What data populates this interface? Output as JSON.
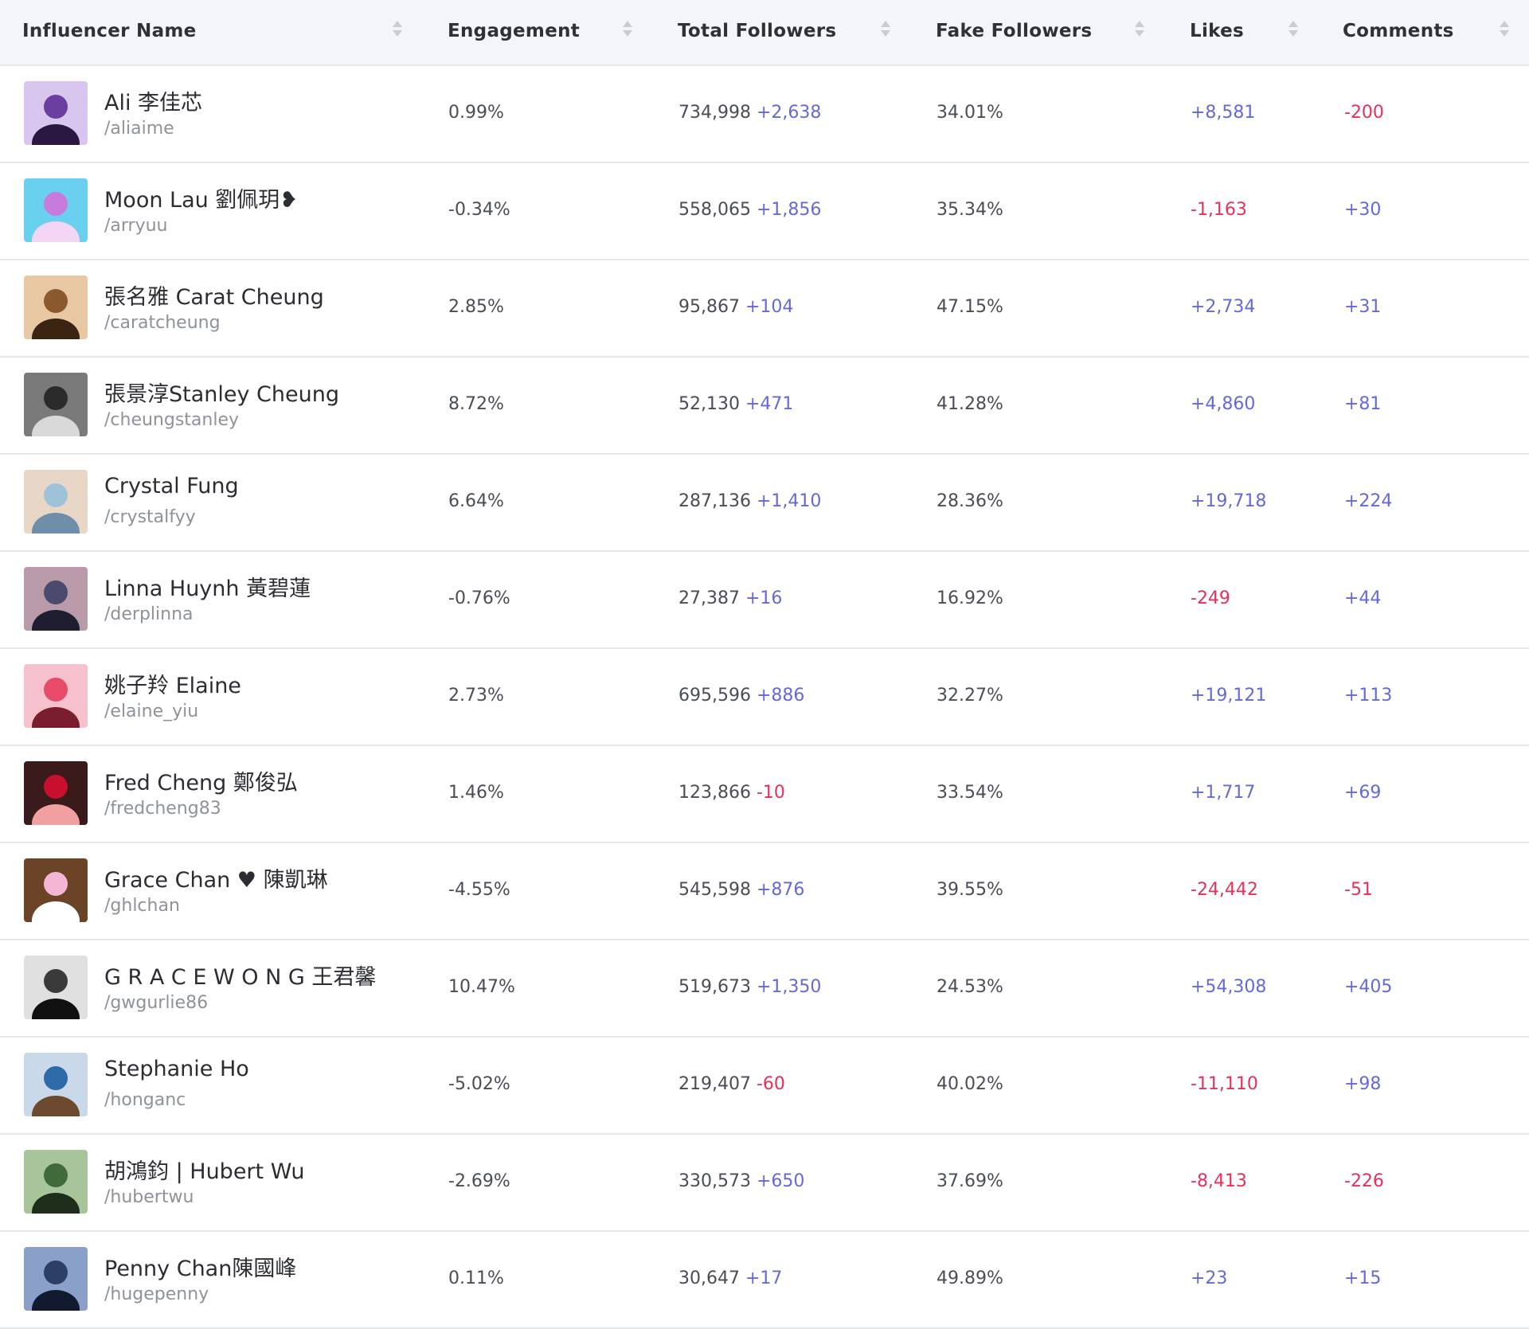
{
  "headers": {
    "name": "Influencer Name",
    "engagement": "Engagement",
    "total_followers": "Total Followers",
    "fake_followers": "Fake Followers",
    "likes": "Likes",
    "comments": "Comments"
  },
  "colors": {
    "positive": "#6569d6",
    "negative": "#e5315a"
  },
  "rows": [
    {
      "name": "Ali 李佳芯",
      "handle": "/aliaime",
      "engagement": "0.99%",
      "total": "734,998",
      "total_delta": "+2,638",
      "fake": "34.01%",
      "likes": "+8,581",
      "comments": "-200"
    },
    {
      "name": "Moon Lau 劉佩玥❥",
      "handle": "/arryuu",
      "engagement": "-0.34%",
      "total": "558,065",
      "total_delta": "+1,856",
      "fake": "35.34%",
      "likes": "-1,163",
      "comments": "+30"
    },
    {
      "name": "張名雅 Carat Cheung",
      "handle": "/caratcheung",
      "engagement": "2.85%",
      "total": "95,867",
      "total_delta": "+104",
      "fake": "47.15%",
      "likes": "+2,734",
      "comments": "+31"
    },
    {
      "name": "張景淳Stanley Cheung",
      "handle": "/cheungstanley",
      "engagement": "8.72%",
      "total": "52,130",
      "total_delta": "+471",
      "fake": "41.28%",
      "likes": "+4,860",
      "comments": "+81"
    },
    {
      "name": "Crystal Fung",
      "handle": "/crystalfyy",
      "engagement": "6.64%",
      "total": "287,136",
      "total_delta": "+1,410",
      "fake": "28.36%",
      "likes": "+19,718",
      "comments": "+224"
    },
    {
      "name": "Linna Huynh 黃碧蓮",
      "handle": "/derplinna",
      "engagement": "-0.76%",
      "total": "27,387",
      "total_delta": "+16",
      "fake": "16.92%",
      "likes": "-249",
      "comments": "+44"
    },
    {
      "name": "姚子羚 Elaine",
      "handle": "/elaine_yiu",
      "engagement": "2.73%",
      "total": "695,596",
      "total_delta": "+886",
      "fake": "32.27%",
      "likes": "+19,121",
      "comments": "+113"
    },
    {
      "name": "Fred Cheng 鄭俊弘",
      "handle": "/fredcheng83",
      "engagement": "1.46%",
      "total": "123,866",
      "total_delta": "-10",
      "fake": "33.54%",
      "likes": "+1,717",
      "comments": "+69"
    },
    {
      "name": "Grace Chan ♥ 陳凱琳",
      "handle": "/ghlchan",
      "engagement": "-4.55%",
      "total": "545,598",
      "total_delta": "+876",
      "fake": "39.55%",
      "likes": "-24,442",
      "comments": "-51"
    },
    {
      "name": "G R A C E W O N G 王君馨",
      "handle": "/gwgurlie86",
      "engagement": "10.47%",
      "total": "519,673",
      "total_delta": "+1,350",
      "fake": "24.53%",
      "likes": "+54,308",
      "comments": "+405"
    },
    {
      "name": "Stephanie Ho",
      "handle": "/honganc",
      "engagement": "-5.02%",
      "total": "219,407",
      "total_delta": "-60",
      "fake": "40.02%",
      "likes": "-11,110",
      "comments": "+98"
    },
    {
      "name": "胡鴻鈞 | Hubert Wu",
      "handle": "/hubertwu",
      "engagement": "-2.69%",
      "total": "330,573",
      "total_delta": "+650",
      "fake": "37.69%",
      "likes": "-8,413",
      "comments": "-226"
    },
    {
      "name": "Penny Chan陳國峰",
      "handle": "/hugepenny",
      "engagement": "0.11%",
      "total": "30,647",
      "total_delta": "+17",
      "fake": "49.89%",
      "likes": "+23",
      "comments": "+15"
    }
  ]
}
